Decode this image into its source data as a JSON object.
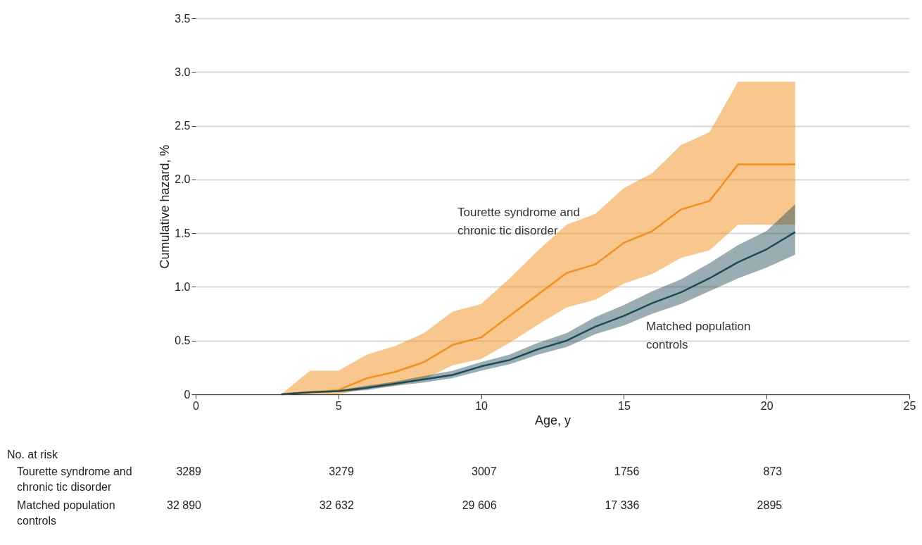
{
  "chart_data": {
    "type": "line",
    "xlabel": "Age, y",
    "ylabel": "Cumulative hazard, %",
    "x": [
      3,
      4,
      5,
      6,
      7,
      8,
      9,
      10,
      11,
      12,
      13,
      14,
      15,
      16,
      17,
      18,
      19,
      20,
      21
    ],
    "series": [
      {
        "name": "Tourette syndrome and chronic tic disorder",
        "color": "#f0901e",
        "values": [
          0,
          0.02,
          0.04,
          0.15,
          0.21,
          0.3,
          0.46,
          0.53,
          0.73,
          0.93,
          1.13,
          1.21,
          1.41,
          1.52,
          1.72,
          1.8,
          2.14,
          2.14,
          2.14
        ],
        "lower": [
          0,
          0,
          0,
          0.05,
          0.08,
          0.14,
          0.27,
          0.33,
          0.48,
          0.65,
          0.81,
          0.88,
          1.03,
          1.12,
          1.27,
          1.34,
          1.58,
          1.58,
          1.58
        ],
        "upper": [
          0,
          0.22,
          0.22,
          0.37,
          0.45,
          0.57,
          0.77,
          0.84,
          1.08,
          1.34,
          1.58,
          1.68,
          1.92,
          2.06,
          2.32,
          2.44,
          2.91,
          2.91,
          2.91
        ]
      },
      {
        "name": "Matched population controls",
        "color": "#1e4a55",
        "values": [
          0,
          0.02,
          0.03,
          0.06,
          0.1,
          0.14,
          0.18,
          0.26,
          0.32,
          0.42,
          0.5,
          0.63,
          0.73,
          0.85,
          0.95,
          1.08,
          1.23,
          1.35,
          1.51
        ],
        "lower": [
          0,
          0.01,
          0.02,
          0.04,
          0.08,
          0.11,
          0.15,
          0.22,
          0.28,
          0.37,
          0.44,
          0.56,
          0.64,
          0.75,
          0.84,
          0.96,
          1.08,
          1.18,
          1.3
        ],
        "upper": [
          0,
          0.02,
          0.04,
          0.08,
          0.12,
          0.17,
          0.22,
          0.3,
          0.37,
          0.48,
          0.57,
          0.72,
          0.83,
          0.96,
          1.07,
          1.22,
          1.39,
          1.52,
          1.77
        ]
      }
    ],
    "xlim": [
      0,
      25
    ],
    "xticks": [
      0,
      5,
      10,
      15,
      20,
      25
    ],
    "ylim": [
      0,
      3.5
    ],
    "yticks": [
      0,
      {
        "value": 0.5,
        "label": "0.5"
      },
      {
        "value": 1,
        "label": "1.0"
      },
      {
        "value": 1.5,
        "label": "1.5"
      },
      {
        "value": 2,
        "label": "2.0"
      },
      {
        "value": 2.5,
        "label": "2.5"
      },
      {
        "value": 3,
        "label": "3.0"
      },
      {
        "value": 3.5,
        "label": "3.5"
      }
    ],
    "grid": "y",
    "marker": "none",
    "line_style": "solid",
    "annotations": [
      "No. at risk",
      "Tourette syndrome and chronic tic disorder",
      "3289",
      "3279",
      "3007",
      "1756",
      "873",
      "Matched population controls",
      "32 890",
      "32 632",
      "29 606",
      "17 336",
      "2895"
    ]
  }
}
